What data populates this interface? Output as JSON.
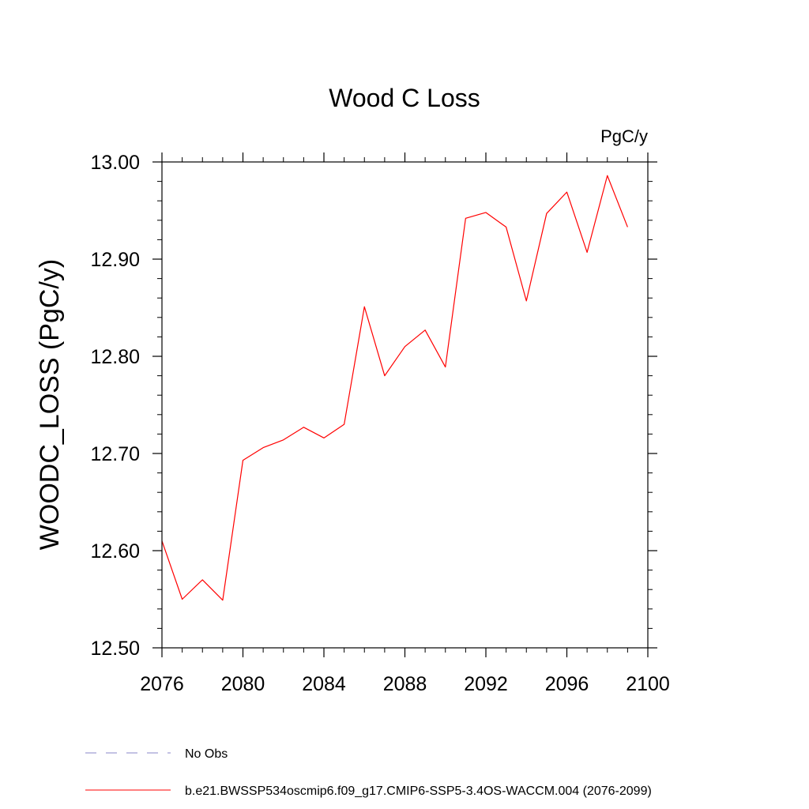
{
  "chart_data": {
    "type": "line",
    "title": "Wood C Loss",
    "units": "PgC/y",
    "ylabel": "WOODC_LOSS  (PgC/y)",
    "xlabel": "",
    "xlim": [
      2076,
      2100
    ],
    "ylim": [
      12.5,
      13.0
    ],
    "x_ticks": [
      "2076",
      "2080",
      "2084",
      "2088",
      "2092",
      "2096",
      "2100"
    ],
    "x_tick_values": [
      2076,
      2080,
      2084,
      2088,
      2092,
      2096,
      2100
    ],
    "y_ticks": [
      "12.50",
      "12.60",
      "12.70",
      "12.80",
      "12.90",
      "13.00"
    ],
    "y_tick_values": [
      12.5,
      12.6,
      12.7,
      12.8,
      12.9,
      13.0
    ],
    "grid": false,
    "legend_position": "bottom-left",
    "legend": [
      {
        "label": "No Obs",
        "style": "dashed",
        "color": "#8a87c8"
      },
      {
        "label": "b.e21.BWSSP534oscmip6.f09_g17.CMIP6-SSP5-3.4OS-WACCM.004 (2076-2099)",
        "style": "solid",
        "color": "#ff0000"
      }
    ],
    "series": [
      {
        "color": "#ff0000",
        "x": [
          2076,
          2077,
          2078,
          2079,
          2080,
          2081,
          2082,
          2083,
          2084,
          2085,
          2086,
          2087,
          2088,
          2089,
          2090,
          2091,
          2092,
          2093,
          2094,
          2095,
          2096,
          2097,
          2098,
          2099
        ],
        "values": [
          12.61,
          12.55,
          12.57,
          12.549,
          12.693,
          12.706,
          12.714,
          12.727,
          12.716,
          12.73,
          12.851,
          12.78,
          12.81,
          12.827,
          12.789,
          12.942,
          12.948,
          12.933,
          12.857,
          12.947,
          12.969,
          12.907,
          12.986,
          12.933
        ]
      }
    ]
  }
}
